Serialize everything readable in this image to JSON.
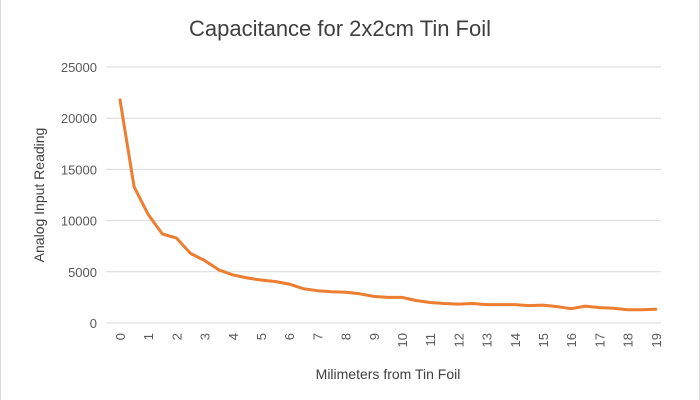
{
  "chart_data": {
    "type": "line",
    "title": "Capacitance for 2x2cm Tin Foil",
    "xlabel": "Milimeters from Tin Foil",
    "ylabel": "Analog Input Reading",
    "ylim": [
      0,
      25000
    ],
    "yticks": [
      "0",
      "5000",
      "10000",
      "15000",
      "20000",
      "25000"
    ],
    "xticks": [
      "0",
      "1",
      "2",
      "3",
      "4",
      "5",
      "6",
      "7",
      "8",
      "9",
      "10",
      "11",
      "12",
      "13",
      "14",
      "15",
      "16",
      "17",
      "18",
      "19"
    ],
    "grid": true,
    "legend": "none",
    "color": "#ED7D31",
    "x": [
      0,
      0.5,
      1,
      1.5,
      2,
      2.5,
      3,
      3.5,
      4,
      4.5,
      5,
      5.5,
      6,
      6.5,
      7,
      7.5,
      8,
      8.5,
      9,
      9.5,
      10,
      10.5,
      11,
      11.5,
      12,
      12.5,
      13,
      13.5,
      14,
      14.5,
      15,
      15.5,
      16,
      16.5,
      17,
      17.5,
      18,
      18.5,
      19
    ],
    "series": [
      {
        "values": [
          21800,
          13300,
          10600,
          8700,
          8300,
          6800,
          6100,
          5200,
          4700,
          4400,
          4200,
          4050,
          3800,
          3350,
          3150,
          3050,
          3000,
          2850,
          2600,
          2500,
          2500,
          2200,
          2000,
          1900,
          1850,
          1900,
          1800,
          1800,
          1800,
          1700,
          1750,
          1600,
          1400,
          1650,
          1500,
          1450,
          1300,
          1300,
          1350
        ]
      }
    ]
  }
}
